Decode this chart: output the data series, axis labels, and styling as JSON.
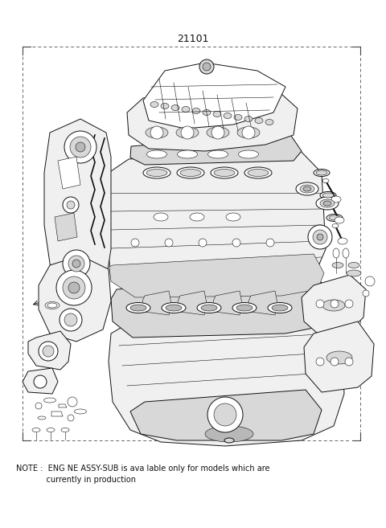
{
  "figure_width": 4.8,
  "figure_height": 6.57,
  "dpi": 100,
  "bg_color": "#ffffff",
  "part_number": "21101",
  "note_line1": "NOTE :  ENG NE ASSY-SUB is ava lable only for models which are",
  "note_line2": "            currently in production",
  "note_fontsize": 7.0,
  "part_number_fontsize": 9,
  "lc": "#111111",
  "lw_main": 0.7,
  "lw_thin": 0.4,
  "lw_thick": 1.0,
  "fc_light": "#f0f0f0",
  "fc_mid": "#d8d8d8",
  "fc_dark": "#b8b8b8",
  "fc_white": "#ffffff"
}
